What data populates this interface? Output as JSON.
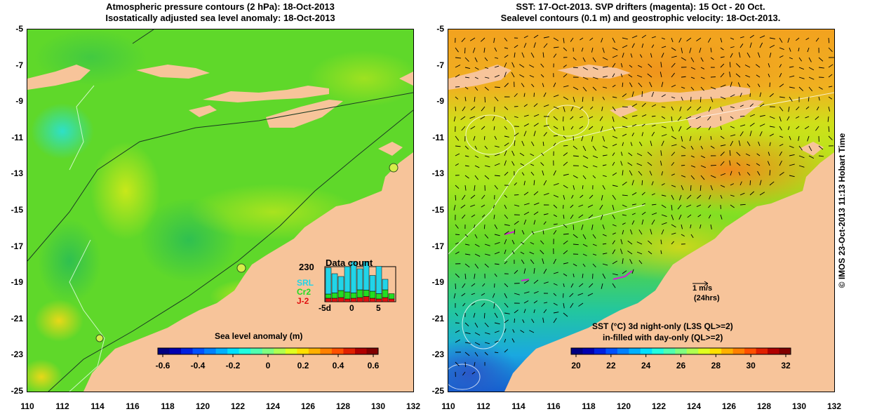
{
  "left_panel": {
    "title_line1": "Atmospheric pressure contours (2 hPa): 18-Oct-2013",
    "title_line2": "Isostatically adjusted sea level anomaly: 18-Oct-2013",
    "colorbar": {
      "label": "Sea level anomaly (m)",
      "ticks": [
        "-0.6",
        "-0.4",
        "-0.2",
        "0",
        "0.2",
        "0.4",
        "0.6"
      ],
      "range": [
        -0.6,
        0.6
      ]
    },
    "data_count": {
      "title": "Data count",
      "max_label": "230",
      "series": [
        {
          "name": "SRL",
          "color": "#22d4e8"
        },
        {
          "name": "Cr2",
          "color": "#22dd22"
        },
        {
          "name": "J-2",
          "color": "#e01010"
        }
      ],
      "x_ticks": [
        "-5d",
        "0",
        "5"
      ],
      "bars": [
        {
          "srl": 0.75,
          "cr2": 0.12,
          "j2": 0.1
        },
        {
          "srl": 0.55,
          "cr2": 0.15,
          "j2": 0.1
        },
        {
          "srl": 0.4,
          "cr2": 0.2,
          "j2": 0.12
        },
        {
          "srl": 0.72,
          "cr2": 0.2,
          "j2": 0.08
        },
        {
          "srl": 0.9,
          "cr2": 0.15,
          "j2": 0.1
        },
        {
          "srl": 0.6,
          "cr2": 0.22,
          "j2": 0.12
        },
        {
          "srl": 0.82,
          "cr2": 0.18,
          "j2": 0.15
        },
        {
          "srl": 0.45,
          "cr2": 0.2,
          "j2": 0.1
        },
        {
          "srl": 0.78,
          "cr2": 0.15,
          "j2": 0.08
        },
        {
          "srl": 0.3,
          "cr2": 0.22,
          "j2": 0.12
        },
        {
          "srl": 0.0,
          "cr2": 0.15,
          "j2": 0.08
        }
      ]
    }
  },
  "right_panel": {
    "title_line1": "SST: 17-Oct-2013. SVP drifters (magenta): 15 Oct - 20 Oct.",
    "title_line2": "Sealevel contours (0.1 m) and geostrophic velocity: 18-Oct-2013.",
    "colorbar": {
      "label_line1": "SST (°C)  3d night-only (L3S QL>=2)",
      "label_line2": "in-filled with day-only (QL>=2)",
      "ticks": [
        "20",
        "22",
        "24",
        "26",
        "28",
        "30",
        "32"
      ],
      "range": [
        20,
        32
      ]
    },
    "velocity_scale": {
      "label": "1 m/s",
      "sublabel": "(24hrs)"
    }
  },
  "axes": {
    "lat_ticks": [
      "-5",
      "-7",
      "-9",
      "-11",
      "-13",
      "-15",
      "-17",
      "-19",
      "-21",
      "-23",
      "-25"
    ],
    "lon_ticks": [
      "110",
      "112",
      "114",
      "116",
      "118",
      "120",
      "122",
      "124",
      "126",
      "128",
      "130",
      "132"
    ],
    "lat_range": [
      -25,
      -5
    ],
    "lon_range": [
      110,
      132
    ]
  },
  "credit": "© IMOS 23-Oct-2013 11:13 Hobart Time",
  "colors": {
    "land": "#f7c49a",
    "ocean_green": "#5fd82a",
    "ocean_orange": "#f2a21f"
  }
}
